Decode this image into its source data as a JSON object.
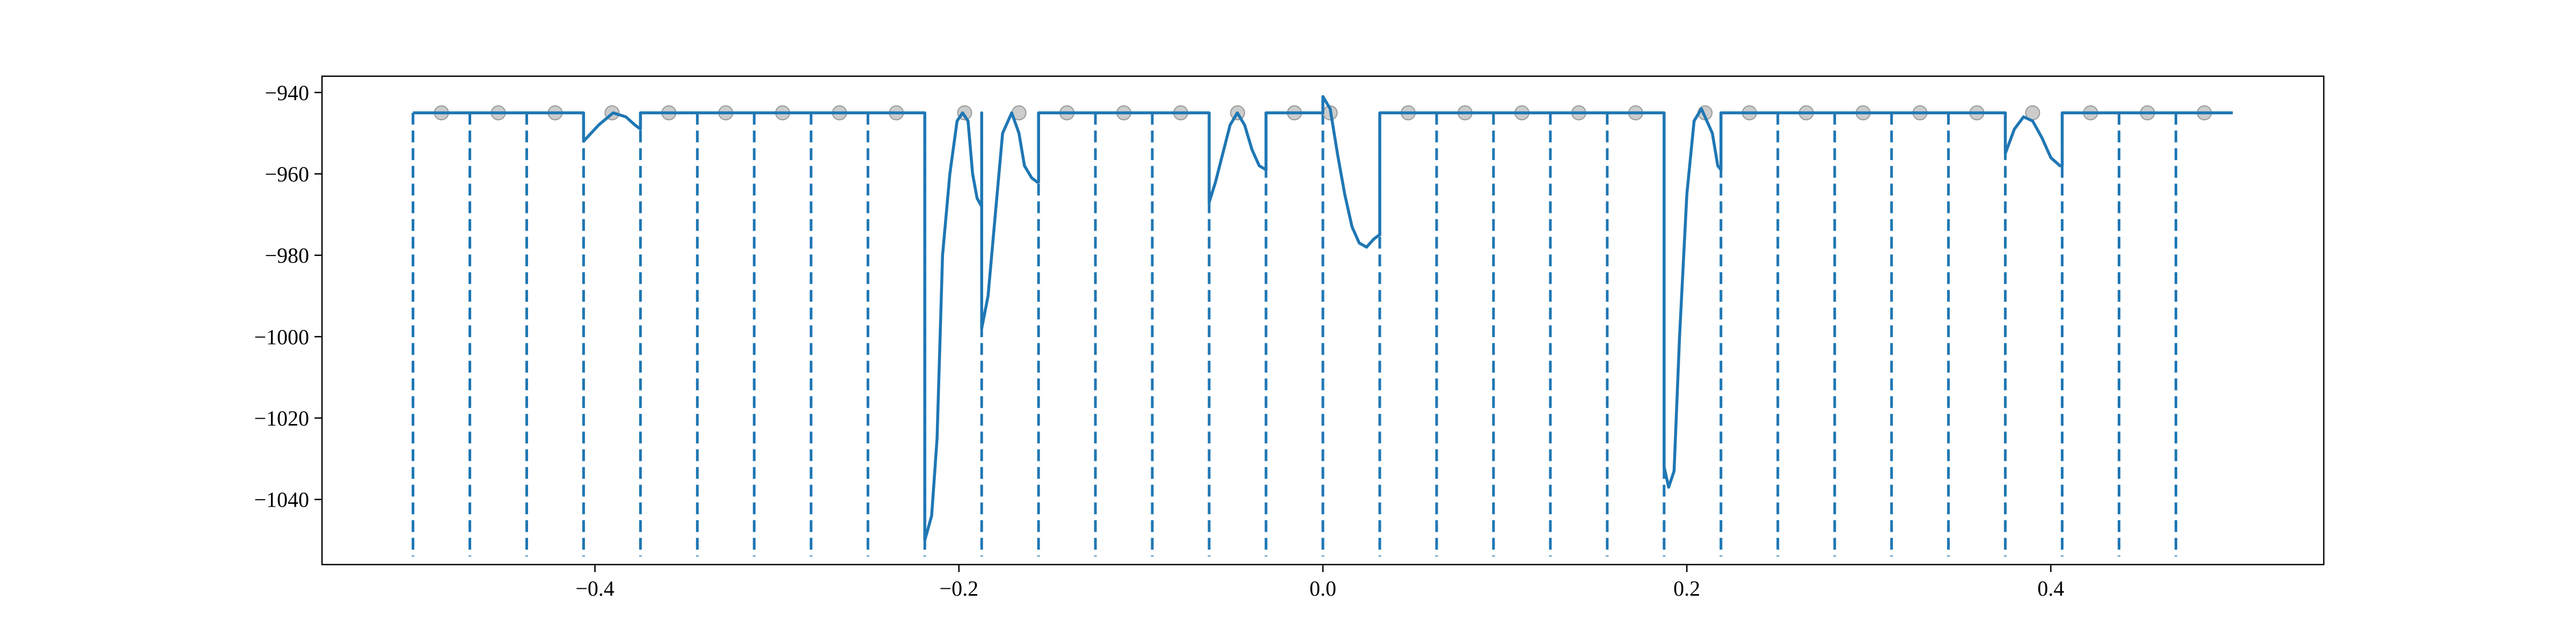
{
  "chart_data": {
    "type": "line",
    "title": "",
    "xlabel": "",
    "ylabel": "",
    "xlim": [
      -0.55,
      0.55
    ],
    "ylim": [
      -1056,
      -936
    ],
    "xticks": [
      -0.4,
      -0.2,
      0.0,
      0.2,
      0.4
    ],
    "xtick_labels": [
      "−0.4",
      "−0.2",
      "0.0",
      "0.2",
      "0.4"
    ],
    "yticks": [
      -940,
      -960,
      -980,
      -1000,
      -1020,
      -1040
    ],
    "ytick_labels": [
      "−940",
      "−960",
      "−980",
      "−1000",
      "−1020",
      "−1040"
    ],
    "grid": false,
    "line_color": "#1f77b4",
    "marker_color": "#bbbbbb",
    "baseline": -945,
    "boundaries": [
      -0.5,
      -0.46875,
      -0.4375,
      -0.40625,
      -0.375,
      -0.34375,
      -0.3125,
      -0.28125,
      -0.25,
      -0.21875,
      -0.1875,
      -0.15625,
      -0.125,
      -0.09375,
      -0.0625,
      -0.03125,
      0.0,
      0.03125,
      0.0625,
      0.09375,
      0.125,
      0.15625,
      0.1875,
      0.21875,
      0.25,
      0.28125,
      0.3125,
      0.34375,
      0.375,
      0.40625,
      0.4375,
      0.46875
    ],
    "markers": {
      "x": [
        -0.484375,
        -0.453125,
        -0.421875,
        -0.390625,
        -0.359375,
        -0.328125,
        -0.296875,
        -0.265625,
        -0.234375,
        -0.196875,
        -0.167,
        -0.140625,
        -0.109375,
        -0.078125,
        -0.046875,
        -0.015625,
        0.004,
        0.046875,
        0.078125,
        0.109375,
        0.140625,
        0.171875,
        0.21,
        0.234375,
        0.265625,
        0.296875,
        0.328125,
        0.359375,
        0.39,
        0.421875,
        0.453125,
        0.484375
      ],
      "y": [
        -945,
        -945,
        -945,
        -945,
        -945,
        -945,
        -945,
        -945,
        -945,
        -945,
        -945,
        -945,
        -945,
        -945,
        -945,
        -945,
        -945,
        -945,
        -945,
        -945,
        -945,
        -945,
        -945,
        -945,
        -945,
        -945,
        -945,
        -945,
        -945,
        -945,
        -945,
        -945
      ]
    },
    "series": [
      {
        "x": [
          -0.5,
          -0.40625,
          -0.40625,
          -0.398,
          -0.39,
          -0.383,
          -0.378,
          -0.375,
          -0.375,
          -0.21875,
          -0.21875,
          -0.215,
          -0.212,
          -0.209,
          -0.205,
          -0.201,
          -0.198,
          -0.195,
          -0.1925,
          -0.19,
          -0.1875,
          -0.1875,
          -0.1875,
          -0.184,
          -0.18,
          -0.176,
          -0.171,
          -0.167,
          -0.164,
          -0.16,
          -0.157,
          -0.15625,
          -0.15625,
          -0.0625,
          -0.0625,
          -0.059,
          -0.055,
          -0.051,
          -0.047,
          -0.043,
          -0.039,
          -0.035,
          -0.03125,
          -0.03125,
          0.0,
          0.0,
          0.004,
          0.008,
          0.012,
          0.016,
          0.02,
          0.024,
          0.028,
          0.031,
          0.03125,
          0.03125,
          0.1875,
          0.1875,
          0.19,
          0.193,
          0.196,
          0.2,
          0.204,
          0.208,
          0.211,
          0.214,
          0.217,
          0.21875,
          0.21875,
          0.375,
          0.375,
          0.38,
          0.385,
          0.39,
          0.395,
          0.4,
          0.405,
          0.40625,
          0.40625,
          0.5
        ],
        "y": [
          -945,
          -945,
          -952,
          -948,
          -945,
          -946,
          -948,
          -949,
          -945,
          -945,
          -1050,
          -1044,
          -1025,
          -980,
          -960,
          -947,
          -945,
          -947,
          -960,
          -966,
          -968,
          -945,
          -998,
          -990,
          -970,
          -950,
          -945,
          -950,
          -958,
          -961,
          -962,
          -962,
          -945,
          -945,
          -967,
          -962,
          -955,
          -948,
          -945,
          -948,
          -954,
          -958,
          -959,
          -945,
          -945,
          -941,
          -944,
          -955,
          -965,
          -973,
          -977,
          -978,
          -976,
          -975,
          -975,
          -945,
          -945,
          -1032,
          -1037,
          -1033,
          -1000,
          -965,
          -947,
          -944,
          -947,
          -950,
          -958,
          -959,
          -945,
          -945,
          -955,
          -949,
          -946,
          -947,
          -951,
          -956,
          -958,
          -958,
          -945,
          -945
        ]
      }
    ]
  }
}
